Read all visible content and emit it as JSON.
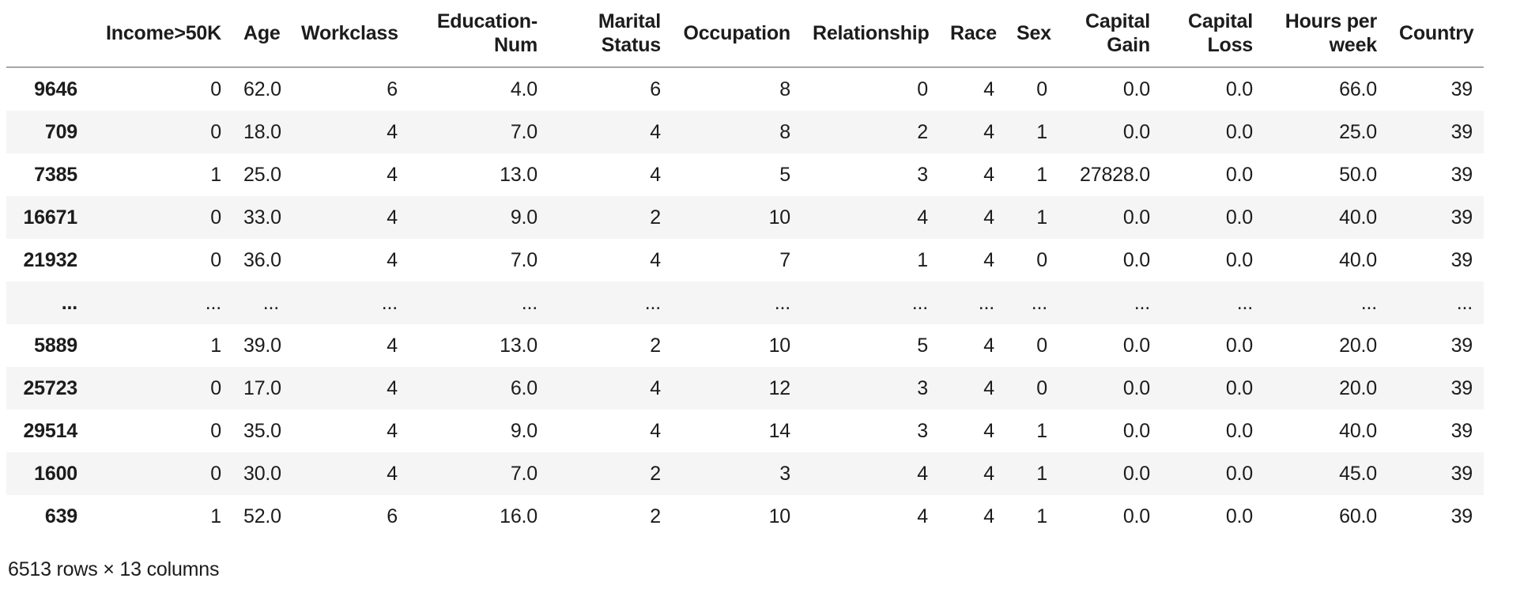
{
  "table": {
    "index_header": "",
    "columns": [
      "Income>50K",
      "Age",
      "Workclass",
      "Education-Num",
      "Marital Status",
      "Occupation",
      "Relationship",
      "Race",
      "Sex",
      "Capital Gain",
      "Capital Loss",
      "Hours per week",
      "Country"
    ],
    "rows": [
      {
        "index": "9646",
        "cells": [
          "0",
          "62.0",
          "6",
          "4.0",
          "6",
          "8",
          "0",
          "4",
          "0",
          "0.0",
          "0.0",
          "66.0",
          "39"
        ]
      },
      {
        "index": "709",
        "cells": [
          "0",
          "18.0",
          "4",
          "7.0",
          "4",
          "8",
          "2",
          "4",
          "1",
          "0.0",
          "0.0",
          "25.0",
          "39"
        ]
      },
      {
        "index": "7385",
        "cells": [
          "1",
          "25.0",
          "4",
          "13.0",
          "4",
          "5",
          "3",
          "4",
          "1",
          "27828.0",
          "0.0",
          "50.0",
          "39"
        ]
      },
      {
        "index": "16671",
        "cells": [
          "0",
          "33.0",
          "4",
          "9.0",
          "2",
          "10",
          "4",
          "4",
          "1",
          "0.0",
          "0.0",
          "40.0",
          "39"
        ]
      },
      {
        "index": "21932",
        "cells": [
          "0",
          "36.0",
          "4",
          "7.0",
          "4",
          "7",
          "1",
          "4",
          "0",
          "0.0",
          "0.0",
          "40.0",
          "39"
        ]
      },
      {
        "index": "...",
        "cells": [
          "...",
          "...",
          "...",
          "...",
          "...",
          "...",
          "...",
          "...",
          "...",
          "...",
          "...",
          "...",
          "..."
        ]
      },
      {
        "index": "5889",
        "cells": [
          "1",
          "39.0",
          "4",
          "13.0",
          "2",
          "10",
          "5",
          "4",
          "0",
          "0.0",
          "0.0",
          "20.0",
          "39"
        ]
      },
      {
        "index": "25723",
        "cells": [
          "0",
          "17.0",
          "4",
          "6.0",
          "4",
          "12",
          "3",
          "4",
          "0",
          "0.0",
          "0.0",
          "20.0",
          "39"
        ]
      },
      {
        "index": "29514",
        "cells": [
          "0",
          "35.0",
          "4",
          "9.0",
          "4",
          "14",
          "3",
          "4",
          "1",
          "0.0",
          "0.0",
          "40.0",
          "39"
        ]
      },
      {
        "index": "1600",
        "cells": [
          "0",
          "30.0",
          "4",
          "7.0",
          "2",
          "3",
          "4",
          "4",
          "1",
          "0.0",
          "0.0",
          "45.0",
          "39"
        ]
      },
      {
        "index": "639",
        "cells": [
          "1",
          "52.0",
          "6",
          "16.0",
          "2",
          "10",
          "4",
          "4",
          "1",
          "0.0",
          "0.0",
          "60.0",
          "39"
        ]
      }
    ]
  },
  "footer": {
    "summary": "6513 rows × 13 columns"
  },
  "colors": {
    "background": "#ffffff",
    "text": "#1c1c1c",
    "row_stripe": "#f5f5f5",
    "header_border": "#a6a6a6"
  }
}
